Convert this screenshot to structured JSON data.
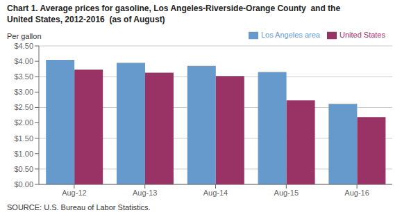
{
  "chart_data": {
    "type": "bar",
    "title": "Chart 1. Average prices for gasoline, Los Angeles-Riverside-Orange County  and the\nUnited States, 2012-2016  (as of August)",
    "ylabel": "Per gallon",
    "annotations": [
      "SOURCE: U.S. Bureau of Labor Statistics."
    ],
    "categories": [
      "Aug-12",
      "Aug-13",
      "Aug-14",
      "Aug-15",
      "Aug-16"
    ],
    "series": [
      {
        "name": "Los Angeles area",
        "color": "#6699CC",
        "values": [
          4.05,
          3.95,
          3.85,
          3.65,
          2.62
        ]
      },
      {
        "name": "United States",
        "color": "#993366",
        "values": [
          3.73,
          3.63,
          3.52,
          2.73,
          2.19
        ]
      }
    ],
    "ylim": [
      0,
      4.5
    ],
    "yticks": [
      {
        "value": 0.0,
        "label": "$0.00"
      },
      {
        "value": 0.5,
        "label": "$0.50"
      },
      {
        "value": 1.0,
        "label": "$1.00"
      },
      {
        "value": 1.5,
        "label": "$1.50"
      },
      {
        "value": 2.0,
        "label": "$2.00"
      },
      {
        "value": 2.5,
        "label": "$2.50"
      },
      {
        "value": 3.0,
        "label": "$3.00"
      },
      {
        "value": 3.5,
        "label": "$3.50"
      },
      {
        "value": 4.0,
        "label": "$4.00"
      },
      {
        "value": 4.5,
        "label": "$4.50"
      }
    ],
    "grid": true,
    "legend": "upper right"
  }
}
